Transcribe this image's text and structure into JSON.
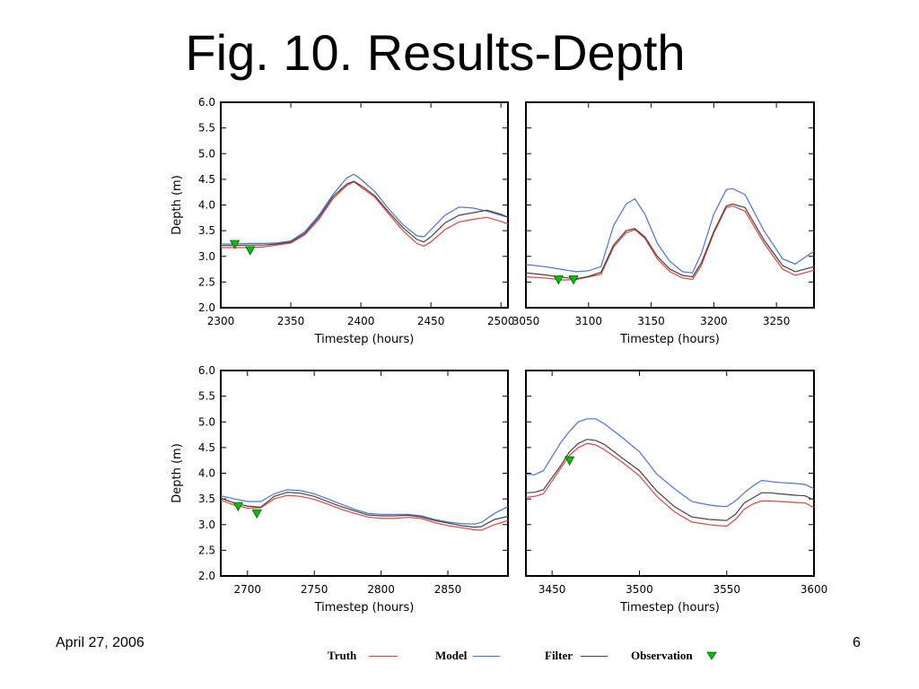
{
  "title": "Fig. 10. Results-Depth",
  "footer": {
    "date": "April 27, 2006",
    "page": "6"
  },
  "legend": {
    "truth": "Truth",
    "model": "Model",
    "filter": "Filter",
    "observation": "Observation",
    "colors": {
      "truth": "#e8413f",
      "model": "#4a72e0",
      "filter": "#444444",
      "observation": "#00c000"
    }
  },
  "chart_data": [
    {
      "type": "line",
      "xlabel": "Timestep (hours)",
      "ylabel": "Depth (m)",
      "xlim": [
        2300,
        2505
      ],
      "ylim": [
        2.0,
        6.0
      ],
      "xticks": [
        2300,
        2350,
        2400,
        2450,
        2500
      ],
      "xtick_labels": [
        "2300",
        "2350",
        "2400",
        "2450",
        "2500"
      ],
      "yticks": [
        2.0,
        2.5,
        3.0,
        3.5,
        4.0,
        4.5,
        5.0,
        5.5,
        6.0
      ],
      "ytick_labels": [
        "2.0",
        "2.5",
        "3.0",
        "3.5",
        "4.0",
        "4.5",
        "5.0",
        "5.5",
        "6.0"
      ],
      "show_ytick_labels": true,
      "series": [
        {
          "name": "Truth",
          "x": [
            2300,
            2310,
            2320,
            2330,
            2340,
            2350,
            2360,
            2370,
            2380,
            2390,
            2395,
            2400,
            2410,
            2420,
            2430,
            2440,
            2445,
            2450,
            2460,
            2470,
            2480,
            2490,
            2500,
            2505
          ],
          "y": [
            3.17,
            3.17,
            3.17,
            3.18,
            3.22,
            3.26,
            3.42,
            3.72,
            4.12,
            4.38,
            4.45,
            4.35,
            4.15,
            3.82,
            3.5,
            3.25,
            3.2,
            3.28,
            3.52,
            3.67,
            3.72,
            3.76,
            3.68,
            3.63
          ]
        },
        {
          "name": "Model",
          "x": [
            2300,
            2310,
            2320,
            2330,
            2340,
            2350,
            2360,
            2370,
            2380,
            2390,
            2395,
            2400,
            2410,
            2420,
            2430,
            2440,
            2445,
            2450,
            2460,
            2470,
            2480,
            2490,
            2500,
            2505
          ],
          "y": [
            3.24,
            3.24,
            3.25,
            3.25,
            3.26,
            3.3,
            3.48,
            3.8,
            4.2,
            4.53,
            4.6,
            4.5,
            4.26,
            3.92,
            3.62,
            3.4,
            3.38,
            3.52,
            3.8,
            3.96,
            3.94,
            3.88,
            3.8,
            3.76
          ]
        },
        {
          "name": "Filter",
          "x": [
            2300,
            2310,
            2320,
            2330,
            2340,
            2350,
            2360,
            2370,
            2380,
            2390,
            2395,
            2400,
            2410,
            2420,
            2430,
            2440,
            2445,
            2450,
            2460,
            2470,
            2480,
            2490,
            2500,
            2505
          ],
          "y": [
            3.21,
            3.21,
            3.22,
            3.22,
            3.24,
            3.28,
            3.45,
            3.76,
            4.16,
            4.41,
            4.46,
            4.38,
            4.18,
            3.86,
            3.56,
            3.33,
            3.28,
            3.38,
            3.65,
            3.8,
            3.85,
            3.9,
            3.82,
            3.76
          ]
        }
      ],
      "observations": [
        {
          "x": 2310,
          "y": 3.24
        },
        {
          "x": 2321,
          "y": 3.12
        }
      ]
    },
    {
      "type": "line",
      "xlabel": "Timestep (hours)",
      "ylabel": "",
      "xlim": [
        3050,
        3280
      ],
      "ylim": [
        2.0,
        6.0
      ],
      "xticks": [
        3050,
        3100,
        3150,
        3200,
        3250
      ],
      "xtick_labels": [
        "3050",
        "3100",
        "3150",
        "3200",
        "3250"
      ],
      "yticks": [
        2.0,
        2.5,
        3.0,
        3.5,
        4.0,
        4.5,
        5.0,
        5.5,
        6.0
      ],
      "ytick_labels": [],
      "show_ytick_labels": false,
      "series": [
        {
          "name": "Truth",
          "x": [
            3050,
            3065,
            3080,
            3090,
            3100,
            3110,
            3120,
            3130,
            3137,
            3145,
            3155,
            3165,
            3175,
            3183,
            3190,
            3200,
            3210,
            3215,
            3225,
            3240,
            3255,
            3265,
            3280
          ],
          "y": [
            2.6,
            2.58,
            2.54,
            2.55,
            2.6,
            2.65,
            3.18,
            3.46,
            3.52,
            3.35,
            2.95,
            2.7,
            2.58,
            2.55,
            2.82,
            3.45,
            3.95,
            3.98,
            3.88,
            3.26,
            2.75,
            2.63,
            2.73
          ]
        },
        {
          "name": "Model",
          "x": [
            3050,
            3065,
            3080,
            3090,
            3100,
            3110,
            3120,
            3130,
            3137,
            3145,
            3155,
            3165,
            3175,
            3183,
            3190,
            3200,
            3210,
            3215,
            3225,
            3240,
            3255,
            3265,
            3280
          ],
          "y": [
            2.84,
            2.8,
            2.74,
            2.7,
            2.72,
            2.8,
            3.6,
            4.02,
            4.12,
            3.82,
            3.25,
            2.9,
            2.7,
            2.68,
            3.05,
            3.82,
            4.3,
            4.32,
            4.2,
            3.5,
            2.95,
            2.85,
            3.1
          ]
        },
        {
          "name": "Filter",
          "x": [
            3050,
            3065,
            3080,
            3090,
            3100,
            3110,
            3120,
            3130,
            3137,
            3145,
            3155,
            3165,
            3175,
            3183,
            3190,
            3200,
            3210,
            3215,
            3225,
            3240,
            3255,
            3265,
            3280
          ],
          "y": [
            2.68,
            2.64,
            2.59,
            2.56,
            2.61,
            2.69,
            3.22,
            3.5,
            3.54,
            3.38,
            3.0,
            2.75,
            2.63,
            2.6,
            2.87,
            3.48,
            3.98,
            4.02,
            3.95,
            3.32,
            2.82,
            2.7,
            2.8
          ]
        }
      ],
      "observations": [
        {
          "x": 3076,
          "y": 2.55
        },
        {
          "x": 3088,
          "y": 2.55
        }
      ]
    },
    {
      "type": "line",
      "xlabel": "Timestep (hours)",
      "ylabel": "Depth (m)",
      "xlim": [
        2680,
        2895
      ],
      "ylim": [
        2.0,
        6.0
      ],
      "xticks": [
        2700,
        2750,
        2800,
        2850
      ],
      "xtick_labels": [
        "2700",
        "2750",
        "2800",
        "2850"
      ],
      "yticks": [
        2.0,
        2.5,
        3.0,
        3.5,
        4.0,
        4.5,
        5.0,
        5.5,
        6.0
      ],
      "ytick_labels": [
        "2.0",
        "2.5",
        "3.0",
        "3.5",
        "4.0",
        "4.5",
        "5.0",
        "5.5",
        "6.0"
      ],
      "show_ytick_labels": true,
      "series": [
        {
          "name": "Truth",
          "x": [
            2680,
            2690,
            2700,
            2710,
            2720,
            2730,
            2740,
            2750,
            2760,
            2770,
            2780,
            2790,
            2800,
            2810,
            2820,
            2830,
            2840,
            2850,
            2860,
            2870,
            2875,
            2885,
            2895
          ],
          "y": [
            3.48,
            3.38,
            3.32,
            3.33,
            3.5,
            3.57,
            3.55,
            3.49,
            3.4,
            3.3,
            3.22,
            3.15,
            3.12,
            3.12,
            3.14,
            3.12,
            3.04,
            2.98,
            2.94,
            2.9,
            2.89,
            3.0,
            3.08
          ]
        },
        {
          "name": "Model",
          "x": [
            2680,
            2690,
            2700,
            2710,
            2720,
            2730,
            2740,
            2750,
            2760,
            2770,
            2780,
            2790,
            2800,
            2810,
            2820,
            2830,
            2840,
            2850,
            2860,
            2870,
            2875,
            2885,
            2895
          ],
          "y": [
            3.56,
            3.5,
            3.45,
            3.45,
            3.6,
            3.68,
            3.66,
            3.6,
            3.5,
            3.4,
            3.3,
            3.22,
            3.2,
            3.2,
            3.2,
            3.17,
            3.1,
            3.05,
            3.02,
            3.01,
            3.04,
            3.22,
            3.35
          ]
        },
        {
          "name": "Filter",
          "x": [
            2680,
            2690,
            2700,
            2710,
            2720,
            2730,
            2740,
            2750,
            2760,
            2770,
            2780,
            2790,
            2800,
            2810,
            2820,
            2830,
            2840,
            2850,
            2860,
            2870,
            2875,
            2885,
            2895
          ],
          "y": [
            3.52,
            3.42,
            3.36,
            3.34,
            3.55,
            3.63,
            3.61,
            3.55,
            3.45,
            3.35,
            3.27,
            3.19,
            3.17,
            3.17,
            3.18,
            3.15,
            3.08,
            3.03,
            2.98,
            2.95,
            2.96,
            3.1,
            3.16
          ]
        }
      ],
      "observations": [
        {
          "x": 2693,
          "y": 3.36
        },
        {
          "x": 2707,
          "y": 3.22
        }
      ]
    },
    {
      "type": "line",
      "xlabel": "Timestep (hours)",
      "ylabel": "",
      "xlim": [
        3435,
        3600
      ],
      "ylim": [
        2.0,
        6.0
      ],
      "xticks": [
        3450,
        3500,
        3550,
        3600
      ],
      "xtick_labels": [
        "3450",
        "3500",
        "3550",
        "3600"
      ],
      "yticks": [
        2.0,
        2.5,
        3.0,
        3.5,
        4.0,
        4.5,
        5.0,
        5.5,
        6.0
      ],
      "ytick_labels": [],
      "show_ytick_labels": false,
      "series": [
        {
          "name": "Truth",
          "x": [
            3435,
            3440,
            3445,
            3455,
            3460,
            3465,
            3470,
            3475,
            3480,
            3490,
            3500,
            3510,
            3520,
            3530,
            3540,
            3545,
            3550,
            3555,
            3560,
            3565,
            3570,
            3575,
            3580,
            3590,
            3595,
            3600
          ],
          "y": [
            3.53,
            3.55,
            3.6,
            4.1,
            4.35,
            4.5,
            4.58,
            4.55,
            4.46,
            4.22,
            3.95,
            3.55,
            3.25,
            3.05,
            3.0,
            2.98,
            2.97,
            3.1,
            3.3,
            3.4,
            3.46,
            3.46,
            3.45,
            3.43,
            3.42,
            3.33
          ]
        },
        {
          "name": "Model",
          "x": [
            3435,
            3440,
            3445,
            3455,
            3460,
            3465,
            3470,
            3475,
            3480,
            3490,
            3500,
            3510,
            3520,
            3530,
            3540,
            3545,
            3550,
            3555,
            3560,
            3565,
            3570,
            3575,
            3580,
            3590,
            3595,
            3600
          ],
          "y": [
            3.98,
            3.97,
            4.05,
            4.6,
            4.82,
            5.0,
            5.06,
            5.06,
            4.96,
            4.7,
            4.42,
            3.98,
            3.7,
            3.45,
            3.38,
            3.36,
            3.35,
            3.46,
            3.62,
            3.75,
            3.86,
            3.84,
            3.82,
            3.8,
            3.78,
            3.7
          ]
        },
        {
          "name": "Filter",
          "x": [
            3435,
            3440,
            3445,
            3455,
            3460,
            3465,
            3470,
            3475,
            3480,
            3490,
            3500,
            3510,
            3520,
            3530,
            3540,
            3545,
            3550,
            3555,
            3560,
            3565,
            3570,
            3575,
            3580,
            3590,
            3595,
            3600
          ],
          "y": [
            3.62,
            3.63,
            3.68,
            4.15,
            4.42,
            4.58,
            4.66,
            4.64,
            4.56,
            4.3,
            4.05,
            3.65,
            3.35,
            3.15,
            3.1,
            3.09,
            3.08,
            3.2,
            3.42,
            3.52,
            3.62,
            3.62,
            3.6,
            3.57,
            3.56,
            3.48
          ]
        }
      ],
      "observations": [
        {
          "x": 3460,
          "y": 4.25
        }
      ]
    }
  ]
}
